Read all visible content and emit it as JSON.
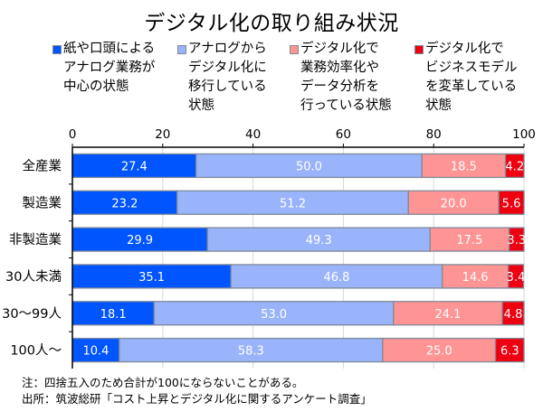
{
  "chart_data": {
    "type": "bar",
    "orientation": "horizontal",
    "stacked": true,
    "title": "デジタル化の取り組み状況",
    "xlabel": "",
    "ylabel": "",
    "xlim": [
      0,
      100
    ],
    "xticks": [
      0,
      20,
      40,
      60,
      80,
      100
    ],
    "grid": true,
    "legend_position": "top",
    "categories": [
      "全産業",
      "製造業",
      "非製造業",
      "30人未満",
      "30〜99人",
      "100人〜"
    ],
    "series": [
      {
        "name": "紙や口頭による\nアナログ業務が\n中心の状態",
        "color": "#0055ff",
        "values": [
          27.4,
          23.2,
          29.9,
          35.1,
          18.1,
          10.4
        ]
      },
      {
        "name": "アナログから\nデジタル化に\n移行している\n状態",
        "color": "#99b4fa",
        "values": [
          50.0,
          51.2,
          49.3,
          46.8,
          53.0,
          58.3
        ]
      },
      {
        "name": "デジタル化で\n業務効率化や\nデータ分析を\n行っている状態",
        "color": "#ff9494",
        "values": [
          18.5,
          20.0,
          17.5,
          14.6,
          24.1,
          25.0
        ]
      },
      {
        "name": "デジタル化で\nビジネスモデル\nを変革している\n状態",
        "color": "#ee0011",
        "values": [
          4.2,
          5.6,
          3.3,
          3.4,
          4.8,
          6.3
        ]
      }
    ],
    "value_labels": [
      [
        "27.4",
        "23.2",
        "29.9",
        "35.1",
        "18.1",
        "10.4"
      ],
      [
        "50.0",
        "51.2",
        "49.3",
        "46.8",
        "53.0",
        "58.3"
      ],
      [
        "18.5",
        "20.0",
        "17.5",
        "14.6",
        "24.1",
        "25.0"
      ],
      [
        "4.2",
        "5.6",
        "3.3",
        "3.4",
        "4.8",
        "6.3"
      ]
    ],
    "notes": [
      "注：四捨五入のため合計が100にならないことがある。",
      "出所：筑波総研「コスト上昇とデジタル化に関するアンケート調査」"
    ]
  }
}
